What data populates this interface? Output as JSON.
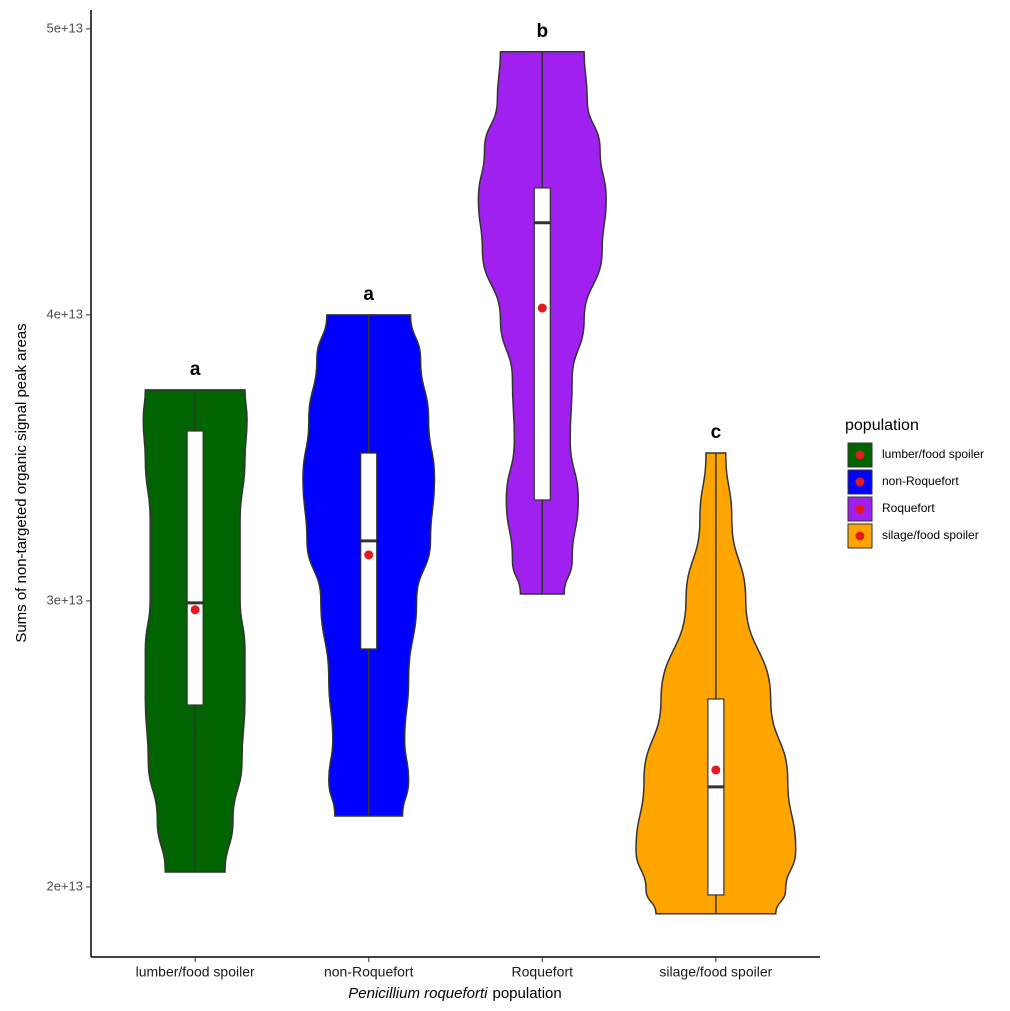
{
  "chart_data": {
    "type": "violin",
    "y_label": "Sums of non-targeted organic signal peak areas",
    "x_label_italic": "Penicillium roqueforti",
    "x_label": "population",
    "categories": [
      "lumber/food spoiler",
      "non-Roquefort",
      "Roquefort",
      "silage/food spoiler"
    ],
    "ylim": [
      17550000000000,
      50660000000000
    ],
    "yticks": [
      {
        "value": 20000000000000,
        "label": "2e+13"
      },
      {
        "value": 30000000000000,
        "label": "3e+13"
      },
      {
        "value": 40000000000000,
        "label": "4e+13"
      },
      {
        "value": 50000000000000,
        "label": "5e+13"
      }
    ],
    "legend_title": "population",
    "legend_position": "right",
    "mean_color": "#e41a1c",
    "box_color": "#ffffff",
    "series": [
      {
        "name": "lumber/food spoiler",
        "color": "#006400",
        "letter": "a",
        "min": 20520000000000,
        "q1": 26360000000000,
        "median": 29930000000000,
        "q3": 35940000000000,
        "max": 37380000000000,
        "mean": 29690000000000,
        "violin": {
          "y": [
            37380000000000,
            36330000000000,
            34930000000000,
            32830000000000,
            30030000000000,
            28290000000000,
            26540000000000,
            24440000000000,
            22340000000000,
            20520000000000
          ],
          "width": [
            0.287,
            0.299,
            0.287,
            0.259,
            0.259,
            0.287,
            0.287,
            0.27,
            0.218,
            0.172
          ]
        }
      },
      {
        "name": "non-Roquefort",
        "color": "#0000ff",
        "letter": "a",
        "min": 22480000000000,
        "q1": 28320000000000,
        "median": 32100000000000,
        "q3": 35170000000000,
        "max": 40000000000000,
        "mean": 31610000000000,
        "violin": {
          "y": [
            40000000000000,
            38430000000000,
            36330000000000,
            34230000000000,
            32130000000000,
            30030000000000,
            27240000000000,
            25140000000000,
            23740000000000,
            22480000000000
          ],
          "width": [
            0.241,
            0.299,
            0.345,
            0.379,
            0.356,
            0.276,
            0.23,
            0.207,
            0.23,
            0.195
          ]
        }
      },
      {
        "name": "Roquefort",
        "color": "#a020f0",
        "letter": "b",
        "min": 30240000000000,
        "q1": 33530000000000,
        "median": 43220000000000,
        "q3": 44440000000000,
        "max": 49200000000000,
        "mean": 40240000000000,
        "violin": {
          "y": [
            49200000000000,
            47520000000000,
            45770000000000,
            44020000000000,
            42270000000000,
            39830000000000,
            37730000000000,
            35630000000000,
            33530000000000,
            31430000000000,
            30240000000000
          ],
          "width": [
            0.241,
            0.259,
            0.333,
            0.368,
            0.345,
            0.241,
            0.172,
            0.161,
            0.207,
            0.172,
            0.126
          ]
        }
      },
      {
        "name": "silage/food spoiler",
        "color": "#ffa500",
        "letter": "c",
        "min": 19060000000000,
        "q1": 19720000000000,
        "median": 23500000000000,
        "q3": 26570000000000,
        "max": 35170000000000,
        "mean": 24090000000000,
        "violin": {
          "y": [
            35170000000000,
            32830000000000,
            30030000000000,
            26540000000000,
            23740000000000,
            21290000000000,
            19900000000000,
            19060000000000
          ],
          "width": [
            0.057,
            0.092,
            0.172,
            0.316,
            0.414,
            0.46,
            0.402,
            0.345
          ]
        }
      }
    ]
  }
}
